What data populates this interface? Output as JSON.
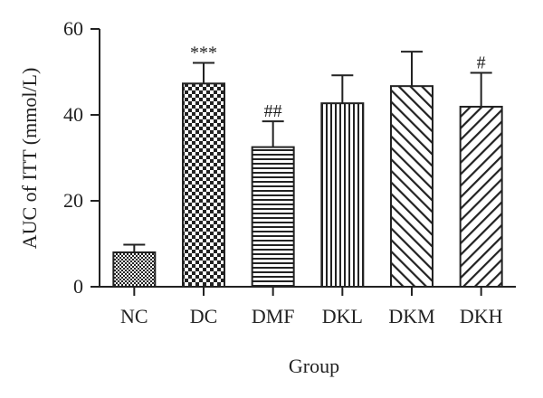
{
  "chart_data": {
    "type": "bar",
    "title": "",
    "xlabel": "Group",
    "ylabel": "AUC of ITT (mmol/L)",
    "ylim": [
      0,
      60
    ],
    "yticks": [
      0,
      20,
      40,
      60
    ],
    "grid": false,
    "categories": [
      "NC",
      "DC",
      "DMF",
      "DKL",
      "DKM",
      "DKH"
    ],
    "values": [
      8,
      47.3,
      32.5,
      42.7,
      46.7,
      41.9
    ],
    "error_upper": [
      1.8,
      4.8,
      6.0,
      6.5,
      8.0,
      7.9
    ],
    "annotations": [
      "",
      "***",
      "##",
      "",
      "",
      "#"
    ],
    "patterns": [
      "checker-fine",
      "checker-coarse",
      "horizontal-lines",
      "vertical-lines",
      "diagonal-up",
      "diagonal-down"
    ],
    "colors": {
      "bar_stroke": "#222222",
      "bar_fill": "#ffffff",
      "axis": "#222222"
    }
  }
}
